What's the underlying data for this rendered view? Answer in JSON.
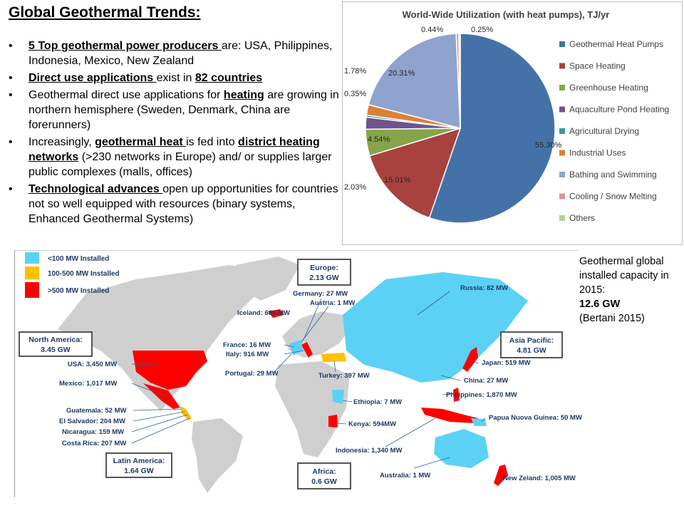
{
  "heading": "Global Geothermal Trends:",
  "bullets": [
    {
      "pre": "",
      "bold": "5 Top geothermal power producers ",
      "post": "are: USA, Philippines, Indonesia, Mexico, New Zealand"
    },
    {
      "pre": "",
      "bold": "Direct use applications ",
      "post": "exist in ",
      "bold2": "82 countries",
      "post2": ""
    },
    {
      "pre": "Geothermal direct use applications for ",
      "bold": "heating",
      "post": " are growing in northern hemisphere (Sweden, Denmark, China are forerunners)"
    },
    {
      "pre": "Increasingly, ",
      "bold": "geothermal heat ",
      "post": "is fed into ",
      "bold2": "district heating networks",
      "post2": " (>230 networks in Europe) and/ or supplies larger public complexes (malls, offices)"
    },
    {
      "pre": "",
      "bold": "Technological advances ",
      "post": "open up opportunities for countries not so well equipped with resources (binary systems, Enhanced Geothermal Systems)"
    }
  ],
  "chart_data": {
    "type": "pie",
    "title": "World-Wide Utilization (with heat pumps), TJ/yr",
    "legend_position": "right",
    "slices": [
      {
        "label": "Geothermal Heat Pumps",
        "value": 55.3,
        "display": "55.30%",
        "color": "#4472a8"
      },
      {
        "label": "Space Heating",
        "value": 15.01,
        "display": "15.01%",
        "color": "#a8423f"
      },
      {
        "label": "Greenhouse Heating",
        "value": 4.54,
        "display": "4.54%",
        "color": "#86a54a"
      },
      {
        "label": "Aquaculture Pond Heating",
        "value": 2.03,
        "display": "2.03%",
        "color": "#6e548d"
      },
      {
        "label": "Agricultural Drying",
        "value": 0.35,
        "display": "0.35%",
        "color": "#3d96ae"
      },
      {
        "label": "Industrial Uses",
        "value": 1.78,
        "display": "1.78%",
        "color": "#da8137"
      },
      {
        "label": "Bathing and Swimming",
        "value": 20.31,
        "display": "20.31%",
        "color": "#8fa3cf"
      },
      {
        "label": "Cooling / Snow Melting",
        "value": 0.44,
        "display": "0.44%",
        "color": "#d99694"
      },
      {
        "label": "Others",
        "value": 0.25,
        "display": "0.25%",
        "color": "#b9cd96"
      }
    ]
  },
  "map": {
    "legend": [
      {
        "label": "<100 MW Installed",
        "color": "#5bd2f5"
      },
      {
        "label": "100-500 MW Installed",
        "color": "#ffc000"
      },
      {
        "label": ">500 MW Installed",
        "color": "#ff0000"
      }
    ],
    "regions": [
      {
        "name": "Europe:",
        "value": "2.13 GW"
      },
      {
        "name": "North America:",
        "value": "3.45 GW"
      },
      {
        "name": "Asia Pacific:",
        "value": "4.81 GW"
      },
      {
        "name": "Latin America:",
        "value": "1.64 GW"
      },
      {
        "name": "Africa:",
        "value": "0.6 GW"
      }
    ],
    "countries": [
      "Russia: 82 MW",
      "Germany: 27 MW",
      "Austria: 1 MW",
      "Iceland: 665 MW",
      "France: 16 MW",
      "Italy: 916 MW",
      "Portugal: 29 MW",
      "Turkey: 397 MW",
      "Japan: 519 MW",
      "China: 27 MW",
      "Philippines: 1,870 MW",
      "Papua Nuova Guinea: 50 MW",
      "Ethiopia: 7 MW",
      "Kenya: 594MW",
      "Indonesia: 1,340 MW",
      "Australia: 1 MW",
      "New Zeland: 1,005 MW",
      "USA: 3,450 MW",
      "Mexico: 1,017 MW",
      "Guatemala: 52 MW",
      "El Salvador: 204 MW",
      "Nicaragua: 159 MW",
      "Costa Rica: 207 MW"
    ]
  },
  "side_note": {
    "line1": "Geothermal global installed capacity in 2015:",
    "value": "12.6 GW",
    "source": "(Bertani 2015)"
  }
}
